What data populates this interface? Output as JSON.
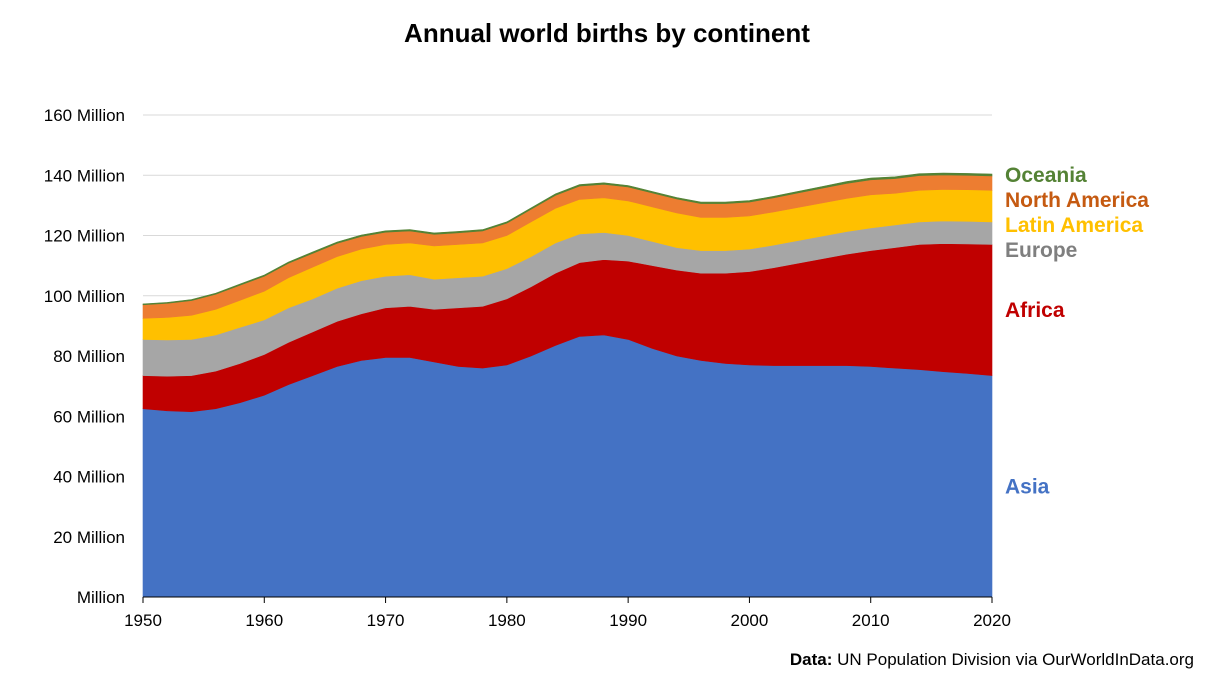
{
  "chart_data": {
    "type": "area",
    "title": "Annual world births by continent",
    "stacked": true,
    "x": [
      1950,
      1952,
      1954,
      1956,
      1958,
      1960,
      1962,
      1964,
      1966,
      1968,
      1970,
      1972,
      1974,
      1976,
      1978,
      1980,
      1982,
      1984,
      1986,
      1988,
      1990,
      1992,
      1994,
      1996,
      1998,
      2000,
      2002,
      2004,
      2006,
      2008,
      2010,
      2012,
      2014,
      2016,
      2018,
      2020
    ],
    "xlim": [
      1950,
      2020
    ],
    "xticks": [
      "1950",
      "1960",
      "1970",
      "1980",
      "1990",
      "2000",
      "2010",
      "2020"
    ],
    "ylim": [
      0,
      160
    ],
    "yticks": [
      "Million",
      "20 Million",
      "40 Million",
      "60 Million",
      "80 Million",
      "100 Million",
      "120 Million",
      "140 Million",
      "160 Million"
    ],
    "series": [
      {
        "name": "Asia",
        "color": "#4472C4",
        "values": [
          62.5,
          61.8,
          61.5,
          62.5,
          64.5,
          67,
          70.5,
          73.5,
          76.5,
          78.5,
          79.5,
          79.5,
          78,
          76.5,
          76,
          77,
          80,
          83.5,
          86.5,
          87,
          85.5,
          82.5,
          80,
          78.5,
          77.5,
          77,
          76.8,
          76.8,
          76.8,
          76.8,
          76.5,
          76,
          75.5,
          74.8,
          74.2,
          73.5
        ]
      },
      {
        "name": "Africa",
        "color": "#C00000",
        "values": [
          11,
          11.5,
          12,
          12.5,
          13,
          13.5,
          14,
          14.5,
          15,
          15.5,
          16.5,
          17,
          17.5,
          19.5,
          20.5,
          22,
          23,
          24,
          24.5,
          25,
          26,
          27.5,
          28.5,
          29,
          30,
          31,
          32.5,
          34,
          35.5,
          37,
          38.5,
          40,
          41.5,
          42.5,
          43,
          43.5
        ]
      },
      {
        "name": "Europe",
        "color": "#A6A6A6",
        "values": [
          12,
          12,
          12,
          12,
          12,
          11.5,
          11.5,
          11,
          11,
          11,
          10.5,
          10.5,
          10,
          10,
          10,
          10,
          10,
          10,
          9.5,
          9,
          8.5,
          8,
          7.5,
          7.5,
          7.5,
          7.5,
          7.5,
          7.5,
          7.5,
          7.5,
          7.5,
          7.5,
          7.5,
          7.5,
          7.5,
          7.5
        ]
      },
      {
        "name": "Latin America",
        "color": "#FFC000",
        "values": [
          7,
          7.5,
          8,
          8.5,
          9,
          9.5,
          10,
          10.5,
          10.5,
          10.5,
          10.5,
          10.5,
          11,
          11,
          11,
          11,
          11.5,
          11.5,
          11.5,
          11.5,
          11.5,
          11.5,
          11.5,
          11,
          11,
          11,
          11,
          11,
          11,
          11,
          11,
          10.5,
          10.5,
          10.5,
          10.5,
          10.5
        ]
      },
      {
        "name": "North America",
        "color": "#ED7D31",
        "values": [
          4.5,
          4.7,
          4.9,
          5,
          5,
          5,
          4.8,
          4.6,
          4.4,
          4.2,
          4.1,
          4,
          3.9,
          3.9,
          4,
          4.1,
          4.2,
          4.3,
          4.4,
          4.5,
          4.6,
          4.6,
          4.6,
          4.6,
          4.6,
          4.6,
          4.7,
          4.8,
          4.9,
          5,
          5,
          4.9,
          4.9,
          4.8,
          4.8,
          4.8
        ]
      },
      {
        "name": "Oceania",
        "color": "#548235",
        "values": [
          0.3,
          0.3,
          0.35,
          0.35,
          0.4,
          0.4,
          0.4,
          0.45,
          0.45,
          0.45,
          0.45,
          0.45,
          0.45,
          0.45,
          0.45,
          0.45,
          0.45,
          0.5,
          0.5,
          0.5,
          0.5,
          0.5,
          0.5,
          0.5,
          0.5,
          0.5,
          0.5,
          0.55,
          0.55,
          0.6,
          0.6,
          0.6,
          0.6,
          0.6,
          0.6,
          0.6
        ]
      }
    ],
    "legend": "right",
    "grid": true,
    "source_label": "Data:",
    "source_text": " UN Population Division via OurWorldInData.org"
  }
}
